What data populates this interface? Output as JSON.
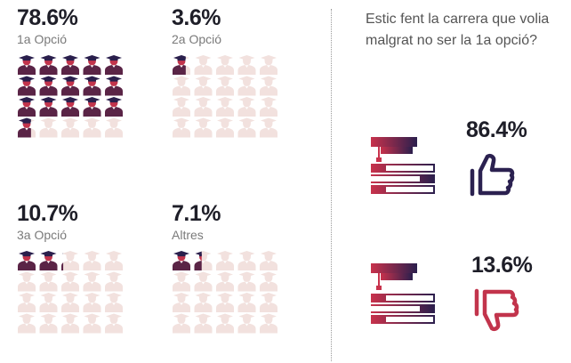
{
  "chart_data": {
    "type": "pictograph",
    "icons_per_group": 20,
    "groups": [
      {
        "percent_label": "78.6%",
        "value": 78.6,
        "label": "1a Opció"
      },
      {
        "percent_label": "3.6%",
        "value": 3.6,
        "label": "2a Opció"
      },
      {
        "percent_label": "10.7%",
        "value": 10.7,
        "label": "3a Opció"
      },
      {
        "percent_label": "7.1%",
        "value": 7.1,
        "label": "Altres"
      }
    ],
    "question": "Estic fent la carrera que volia malgrat no ser la 1a opció?",
    "answers": [
      {
        "percent_label": "86.4%",
        "value": 86.4,
        "icon": "thumbs-up-icon"
      },
      {
        "percent_label": "13.6%",
        "value": 13.6,
        "icon": "thumbs-down-icon"
      }
    ]
  },
  "colors": {
    "filled_head": "#c2344c",
    "filled_cap": "#2a1f4c",
    "filled_body": "#5a2446",
    "empty": "#f2e1de",
    "book_gradient_start": "#c8324c",
    "book_gradient_end": "#2b1f4d",
    "thumb_up": "#2b2150",
    "thumb_down": "#c2344c"
  }
}
